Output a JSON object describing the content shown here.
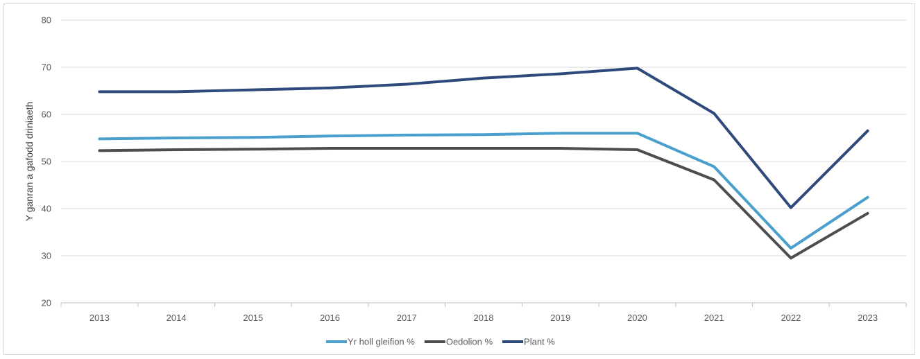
{
  "chart_data": {
    "type": "line",
    "title": "",
    "xlabel": "",
    "ylabel": "Y ganran a gafodd driniaeth",
    "categories": [
      "2013",
      "2014",
      "2015",
      "2016",
      "2017",
      "2018",
      "2019",
      "2020",
      "2021",
      "2022",
      "2023"
    ],
    "ylim": [
      20,
      80
    ],
    "yticks": [
      20,
      30,
      40,
      50,
      60,
      70,
      80
    ],
    "grid": true,
    "legend_position": "bottom",
    "series": [
      {
        "name": "Yr holl gleifion %",
        "color": "#4a9fcd",
        "values": [
          54.8,
          55.0,
          55.1,
          55.4,
          55.6,
          55.7,
          56.0,
          56.0,
          48.9,
          31.6,
          42.4
        ]
      },
      {
        "name": "Oedolion %",
        "color": "#4d4d4d",
        "values": [
          52.3,
          52.5,
          52.6,
          52.8,
          52.8,
          52.8,
          52.8,
          52.5,
          46.1,
          29.5,
          39.0
        ]
      },
      {
        "name": "Plant %",
        "color": "#2e4a7d",
        "values": [
          64.8,
          64.8,
          65.2,
          65.6,
          66.4,
          67.7,
          68.6,
          69.8,
          60.2,
          40.2,
          56.5
        ]
      }
    ]
  }
}
